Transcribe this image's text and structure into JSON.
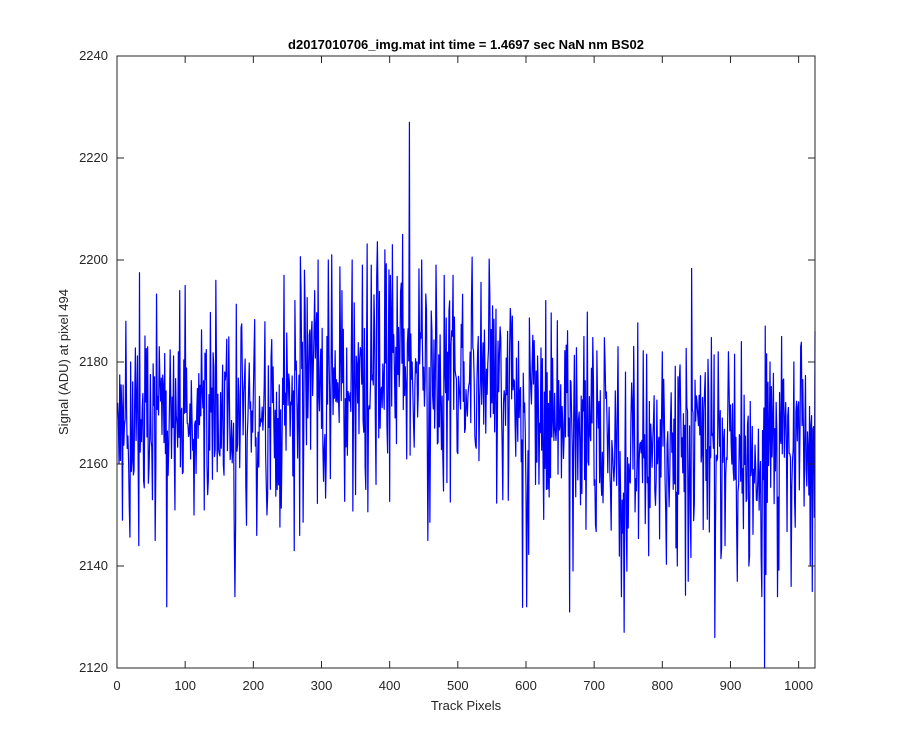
{
  "figure": {
    "background": "#ffffff"
  },
  "chart_data": {
    "type": "line",
    "title": "d2017010706_img.mat int time = 1.4697 sec  NaN nm BS02",
    "xlabel": "Track Pixels",
    "ylabel": "Signal (ADU) at pixel 494",
    "xlim": [
      0,
      1024
    ],
    "ylim": [
      2120,
      2240
    ],
    "xticks": [
      0,
      100,
      200,
      300,
      400,
      500,
      600,
      700,
      800,
      900,
      1000
    ],
    "yticks": [
      2120,
      2140,
      2160,
      2180,
      2200,
      2220,
      2240
    ],
    "grid": false,
    "box": true,
    "series": [
      {
        "color": "#0000ff",
        "x_start": 1,
        "x_step": 1,
        "length": 1024,
        "profile": [
          [
            0,
            2166
          ],
          [
            50,
            2167
          ],
          [
            100,
            2169
          ],
          [
            150,
            2170
          ],
          [
            200,
            2171
          ],
          [
            250,
            2172
          ],
          [
            300,
            2174
          ],
          [
            350,
            2176
          ],
          [
            400,
            2178
          ],
          [
            450,
            2178
          ],
          [
            500,
            2176
          ],
          [
            550,
            2174
          ],
          [
            600,
            2170
          ],
          [
            650,
            2169
          ],
          [
            700,
            2166
          ],
          [
            750,
            2162
          ],
          [
            800,
            2163
          ],
          [
            850,
            2163
          ],
          [
            900,
            2163
          ],
          [
            950,
            2162
          ],
          [
            1024,
            2163
          ]
        ],
        "noise_sd": 10,
        "spikes": [
          [
            1,
            2172
          ],
          [
            8,
            2149
          ],
          [
            13,
            2188
          ],
          [
            20,
            2180
          ],
          [
            32,
            2144
          ],
          [
            45,
            2183
          ],
          [
            52,
            2153
          ],
          [
            56,
            2145
          ],
          [
            62,
            2183
          ],
          [
            73,
            2132
          ],
          [
            85,
            2151
          ],
          [
            90,
            2182
          ],
          [
            92,
            2194
          ],
          [
            100,
            2195
          ],
          [
            113,
            2150
          ],
          [
            128,
            2151
          ],
          [
            140,
            2157
          ],
          [
            145,
            2196
          ],
          [
            160,
            2178
          ],
          [
            172,
            2147
          ],
          [
            173,
            2134
          ],
          [
            190,
            2148
          ],
          [
            205,
            2146
          ],
          [
            220,
            2150
          ],
          [
            235,
            2155
          ],
          [
            245,
            2197
          ],
          [
            260,
            2143
          ],
          [
            268,
            2146
          ],
          [
            275,
            2198
          ],
          [
            290,
            2194
          ],
          [
            295,
            2200
          ],
          [
            310,
            2200
          ],
          [
            315,
            2201
          ],
          [
            330,
            2194
          ],
          [
            345,
            2200
          ],
          [
            350,
            2154
          ],
          [
            360,
            2199
          ],
          [
            365,
            2155
          ],
          [
            373,
            2199
          ],
          [
            380,
            2156
          ],
          [
            393,
            2202
          ],
          [
            401,
            2197
          ],
          [
            404,
            2203
          ],
          [
            410,
            2164
          ],
          [
            419,
            2205
          ],
          [
            425,
            2161
          ],
          [
            429,
            2227
          ],
          [
            433,
            2180
          ],
          [
            440,
            2180
          ],
          [
            447,
            2200
          ],
          [
            455,
            2170
          ],
          [
            461,
            2190
          ],
          [
            468,
            2199
          ],
          [
            480,
            2197
          ],
          [
            488,
            2192
          ],
          [
            493,
            2197
          ],
          [
            520,
            2192
          ],
          [
            530,
            2185
          ],
          [
            551,
            2191
          ],
          [
            566,
            2153
          ],
          [
            573,
            2186
          ],
          [
            580,
            2189
          ],
          [
            600,
            2155
          ],
          [
            601,
            2132
          ],
          [
            620,
            2168
          ],
          [
            664,
            2131
          ],
          [
            685,
            2185
          ],
          [
            702,
            2148
          ],
          [
            705,
            2172
          ],
          [
            724,
            2155
          ],
          [
            735,
            2183
          ],
          [
            740,
            2134
          ],
          [
            744,
            2127
          ],
          [
            748,
            2139
          ],
          [
            780,
            2142
          ],
          [
            800,
            2182
          ],
          [
            822,
            2140
          ],
          [
            838,
            2137
          ],
          [
            851,
            2172
          ],
          [
            877,
            2126
          ],
          [
            882,
            2182
          ],
          [
            892,
            2144
          ],
          [
            910,
            2137
          ],
          [
            916,
            2184
          ],
          [
            927,
            2140
          ],
          [
            946,
            2134
          ],
          [
            950,
            2120
          ],
          [
            958,
            2180
          ],
          [
            969,
            2134
          ],
          [
            975,
            2185
          ],
          [
            989,
            2136
          ],
          [
            993,
            2180
          ],
          [
            1003,
            2183
          ],
          [
            1014,
            2163
          ],
          [
            1017,
            2140
          ],
          [
            1020,
            2135
          ],
          [
            1024,
            2186
          ]
        ]
      }
    ]
  }
}
